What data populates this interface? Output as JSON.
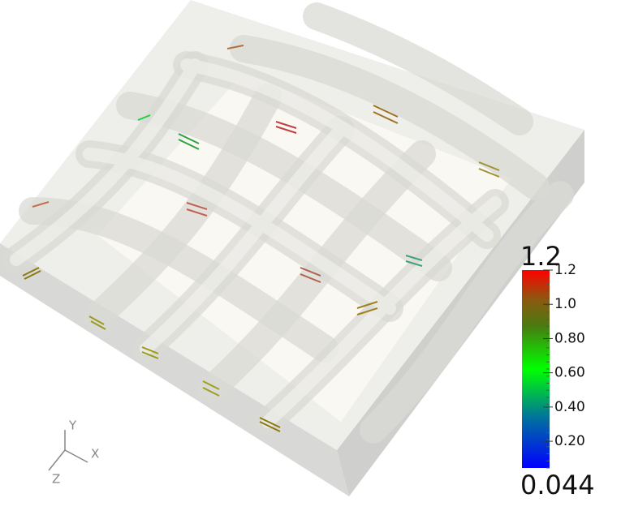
{
  "colorbar": {
    "range": [
      0.044,
      1.2
    ],
    "ticks": [
      {
        "value": 1.2,
        "label": "1.2"
      },
      {
        "value": 1.0,
        "label": "1.0"
      },
      {
        "value": 0.8,
        "label": "0.80"
      },
      {
        "value": 0.6,
        "label": "0.60"
      },
      {
        "value": 0.4,
        "label": "0.40"
      },
      {
        "value": 0.2,
        "label": "0.20"
      }
    ]
  },
  "axes": {
    "x": "X",
    "y": "Y",
    "z": "Z"
  }
}
